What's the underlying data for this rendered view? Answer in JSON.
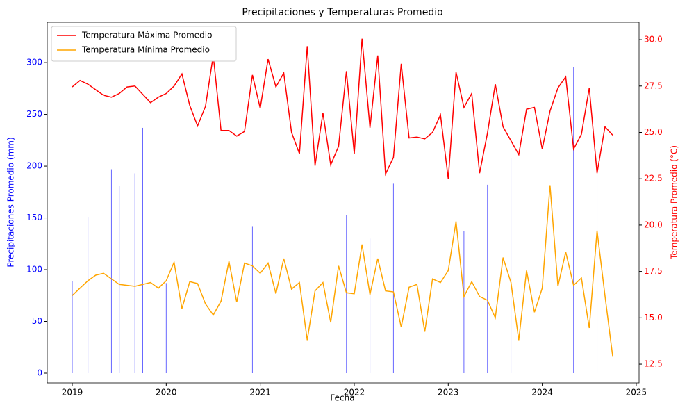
{
  "chart_data": {
    "type": "combo",
    "title": "Precipitaciones y Temperaturas Promedio",
    "xlabel": "Fecha",
    "ylabel": "Precipitaciones Promedio (mm)",
    "y2label": "Temperatura Promedio (°C)",
    "xlim": [
      2018.734,
      2025.03
    ],
    "xticks": [
      2019,
      2020,
      2021,
      2022,
      2023,
      2024,
      2025
    ],
    "ylim": [
      -9.4,
      339
    ],
    "yticks": [
      0,
      50,
      100,
      150,
      200,
      250,
      300
    ],
    "y2lim": [
      11.49,
      30.94
    ],
    "y2ticks": [
      {
        "value": 12.5,
        "label": "12.5"
      },
      {
        "value": 15,
        "label": "15.0"
      },
      {
        "value": 17.5,
        "label": "17.5"
      },
      {
        "value": 20,
        "label": "20.0"
      },
      {
        "value": 22.5,
        "label": "22.5"
      },
      {
        "value": 25,
        "label": "25.0"
      },
      {
        "value": 27.5,
        "label": "27.5"
      },
      {
        "value": 30,
        "label": "30.0"
      }
    ],
    "ycolor": "blue",
    "y2color": "red",
    "legend": "upper left",
    "x": [
      2019,
      2019.083,
      2019.167,
      2019.25,
      2019.333,
      2019.417,
      2019.5,
      2019.583,
      2019.667,
      2019.75,
      2019.833,
      2019.917,
      2020,
      2020.083,
      2020.167,
      2020.25,
      2020.333,
      2020.417,
      2020.5,
      2020.583,
      2020.667,
      2020.75,
      2020.833,
      2020.917,
      2021,
      2021.083,
      2021.167,
      2021.25,
      2021.333,
      2021.417,
      2021.5,
      2021.583,
      2021.667,
      2021.75,
      2021.833,
      2021.917,
      2022,
      2022.083,
      2022.167,
      2022.25,
      2022.333,
      2022.417,
      2022.5,
      2022.583,
      2022.667,
      2022.75,
      2022.833,
      2022.917,
      2023,
      2023.083,
      2023.167,
      2023.25,
      2023.333,
      2023.417,
      2023.5,
      2023.583,
      2023.667,
      2023.75,
      2023.833,
      2023.917,
      2024,
      2024.083,
      2024.167,
      2024.25,
      2024.333,
      2024.417,
      2024.5,
      2024.583,
      2024.667,
      2024.75
    ],
    "bars": {
      "color": "#0000ff",
      "x": [
        2019,
        2019.167,
        2019.417,
        2019.5,
        2019.667,
        2019.75,
        2020,
        2020.917,
        2021.917,
        2022.167,
        2022.417,
        2023.167,
        2023.417,
        2023.667,
        2024.333,
        2024.583
      ],
      "values": [
        89,
        151,
        197,
        181,
        193,
        237,
        87,
        142,
        153,
        130,
        183,
        137,
        182,
        208,
        296,
        212
      ]
    },
    "series": [
      {
        "name": "Temperatura Máxima Promedio",
        "color": "red",
        "axis": "y2",
        "values": [
          27.45,
          27.8,
          27.6,
          27.3,
          27.0,
          26.9,
          27.1,
          27.45,
          27.5,
          27.05,
          26.6,
          26.9,
          27.1,
          27.5,
          28.15,
          26.45,
          25.35,
          26.4,
          29.15,
          25.1,
          25.1,
          24.8,
          25.05,
          28.1,
          26.3,
          28.95,
          27.45,
          28.2,
          25.0,
          23.85,
          29.65,
          23.2,
          26.05,
          23.25,
          24.25,
          28.3,
          23.85,
          30.05,
          25.25,
          29.15,
          22.75,
          23.65,
          28.7,
          24.7,
          24.75,
          24.65,
          25.0,
          25.95,
          22.5,
          28.25,
          26.35,
          27.1,
          22.8,
          24.95,
          27.6,
          25.3,
          24.55,
          23.8,
          26.25,
          26.35,
          24.1,
          26.15,
          27.4,
          28.0,
          24.1,
          24.9,
          27.4,
          22.8,
          25.3,
          24.85
        ]
      },
      {
        "name": "Temperatura Mínima Promedio",
        "color": "orange",
        "axis": "y2",
        "values": [
          16.2,
          16.6,
          17.0,
          17.3,
          17.4,
          17.1,
          16.8,
          16.75,
          16.7,
          16.8,
          16.9,
          16.6,
          17.0,
          18.0,
          15.5,
          16.95,
          16.85,
          15.75,
          15.15,
          15.9,
          18.05,
          15.85,
          17.95,
          17.8,
          17.4,
          17.95,
          16.3,
          18.2,
          16.55,
          16.9,
          13.8,
          16.45,
          16.9,
          14.75,
          17.8,
          16.35,
          16.3,
          18.95,
          16.25,
          18.2,
          16.45,
          16.4,
          14.5,
          16.65,
          16.8,
          14.25,
          17.1,
          16.9,
          17.55,
          20.2,
          16.15,
          16.95,
          16.15,
          15.95,
          15.0,
          18.25,
          16.9,
          13.8,
          17.55,
          15.3,
          16.6,
          22.15,
          16.7,
          18.55,
          16.75,
          17.15,
          14.45,
          19.7,
          16.2,
          12.9
        ]
      }
    ]
  }
}
